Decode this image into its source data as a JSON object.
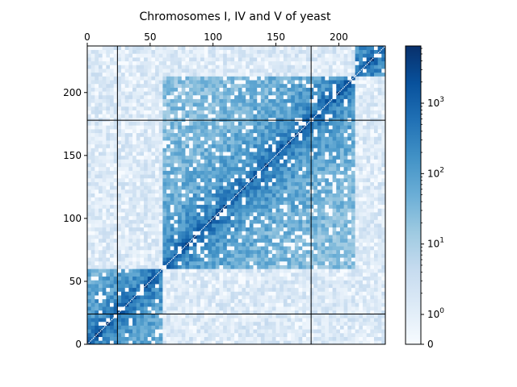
{
  "chart_data": {
    "type": "heatmap",
    "title": "Chromosomes I, IV and V of yeast",
    "xlabel": "",
    "ylabel": "",
    "xlim": [
      0,
      237
    ],
    "ylim": [
      0,
      237
    ],
    "x_ticks": [
      0,
      50,
      100,
      150,
      200
    ],
    "y_ticks": [
      0,
      50,
      100,
      150,
      200
    ],
    "x_axis_position": "top",
    "y_axis_origin": "bottom",
    "chromosomes": [
      {
        "name": "I",
        "start": 213,
        "end": 237
      },
      {
        "name": "IV",
        "start": 59,
        "end": 213
      },
      {
        "name": "V",
        "start": 0,
        "end": 59
      }
    ],
    "boundaries": [
      24,
      178
    ],
    "colorbar": {
      "scale": "symlog",
      "min": 0,
      "max": 6500,
      "tick_values": [
        0,
        1,
        10,
        100,
        1000
      ],
      "tick_labels": [
        {
          "base": "0",
          "exp": ""
        },
        {
          "base": "10",
          "exp": "0"
        },
        {
          "base": "10",
          "exp": "1"
        },
        {
          "base": "10",
          "exp": "2"
        },
        {
          "base": "10",
          "exp": "3"
        }
      ],
      "colormap": "Blues"
    },
    "color_stops": [
      "#f7fbff",
      "#deebf7",
      "#c6dbef",
      "#9ecae1",
      "#6baed6",
      "#4292c6",
      "#2171b5",
      "#08519c",
      "#08306b"
    ],
    "grid": false
  }
}
